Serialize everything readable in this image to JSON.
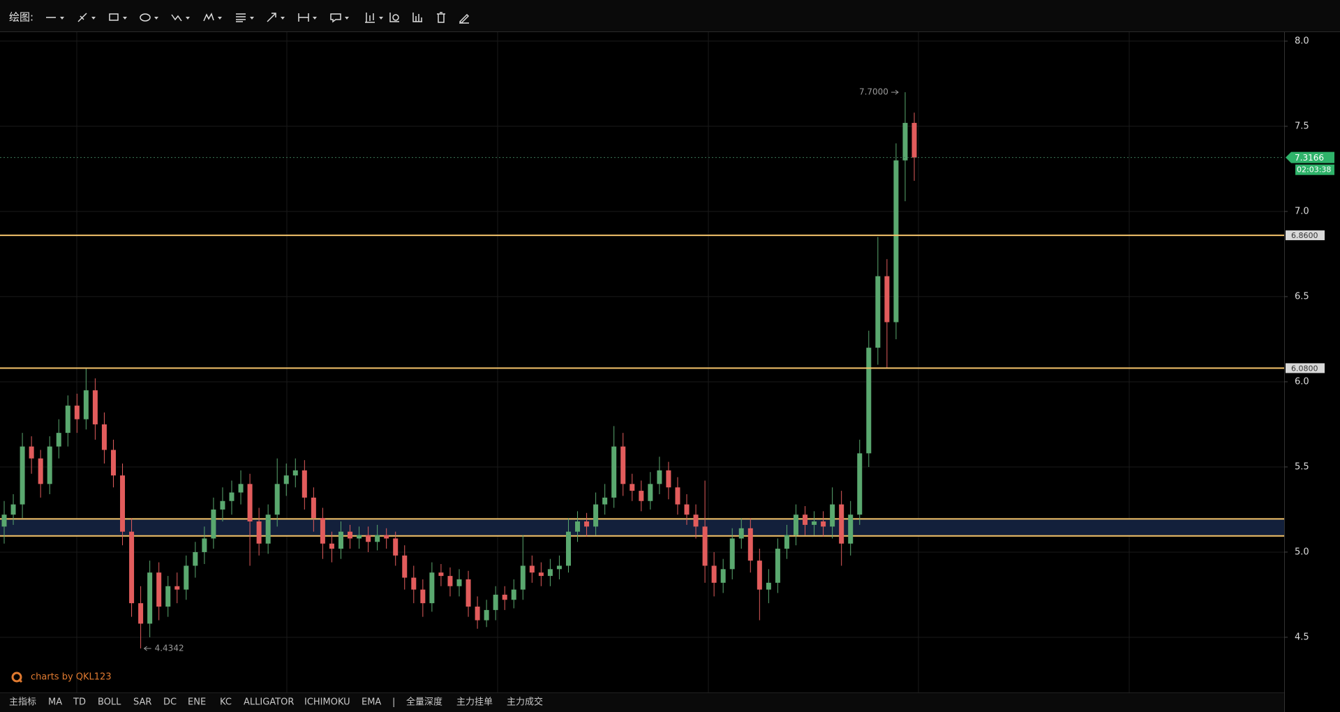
{
  "toolbar": {
    "label": "绘图:"
  },
  "indicator_bar": {
    "items": [
      "主指标",
      "MA",
      "TD",
      "BOLL",
      "SAR",
      "DC",
      "ENE",
      "KC",
      "ALLIGATOR",
      "ICHIMOKU",
      "EMA",
      "|",
      "全量深度",
      "主力挂单",
      "主力成交"
    ]
  },
  "watermark": "charts by QKL123",
  "chart_data": {
    "type": "candlestick",
    "up_color": "#5aa86f",
    "down_color": "#e25c5c",
    "ylim": [
      4.176,
      8.053
    ],
    "yticks": [
      {
        "value": 8,
        "label": "8.0"
      },
      7.5,
      {
        "value": 7,
        "label": "7.0"
      },
      6.5,
      {
        "value": 6,
        "label": "6.0"
      },
      5.5,
      {
        "value": 5,
        "label": "5.0"
      },
      4.5
    ],
    "grid": true,
    "open": [
      5.15,
      5.22,
      5.28,
      5.62,
      5.55,
      5.4,
      5.62,
      5.7,
      5.86,
      5.78,
      5.95,
      5.75,
      5.6,
      5.45,
      5.12,
      4.7,
      4.58,
      4.88,
      4.68,
      4.8,
      4.78,
      4.92,
      5.0,
      5.08,
      5.25,
      5.3,
      5.35,
      5.4,
      5.18,
      5.05,
      5.22,
      5.4,
      5.45,
      5.48,
      5.32,
      5.2,
      5.05,
      5.02,
      5.12,
      5.08,
      5.1,
      5.06,
      5.1,
      5.08,
      4.98,
      4.85,
      4.78,
      4.7,
      4.88,
      4.86,
      4.8,
      4.84,
      4.68,
      4.6,
      4.66,
      4.75,
      4.72,
      4.78,
      4.92,
      4.88,
      4.86,
      4.9,
      4.92,
      5.12,
      5.18,
      5.15,
      5.28,
      5.32,
      5.62,
      5.4,
      5.36,
      5.3,
      5.4,
      5.48,
      5.38,
      5.28,
      5.22,
      5.15,
      4.92,
      4.82,
      4.9,
      5.08,
      5.14,
      4.95,
      4.78,
      4.82,
      5.02,
      5.1,
      5.22,
      5.16,
      5.18,
      5.15,
      5.28,
      5.05,
      5.22,
      5.58,
      6.2,
      6.62,
      6.35,
      7.3,
      7.52
    ],
    "high": [
      5.3,
      5.34,
      5.7,
      5.68,
      5.6,
      5.68,
      5.78,
      5.92,
      5.93,
      6.08,
      6.02,
      5.82,
      5.66,
      5.52,
      5.2,
      4.8,
      4.95,
      4.94,
      4.86,
      4.88,
      4.98,
      5.06,
      5.15,
      5.32,
      5.38,
      5.42,
      5.48,
      5.46,
      5.26,
      5.28,
      5.55,
      5.52,
      5.55,
      5.54,
      5.38,
      5.26,
      5.12,
      5.18,
      5.16,
      5.15,
      5.15,
      5.16,
      5.14,
      5.12,
      5.04,
      4.92,
      4.84,
      4.94,
      4.93,
      4.91,
      4.9,
      4.89,
      4.74,
      4.72,
      4.8,
      4.8,
      4.84,
      5.1,
      4.98,
      4.94,
      4.96,
      4.98,
      5.2,
      5.24,
      5.23,
      5.35,
      5.4,
      5.74,
      5.7,
      5.46,
      5.42,
      5.47,
      5.56,
      5.53,
      5.44,
      5.34,
      5.28,
      5.42,
      5.0,
      4.96,
      5.14,
      5.2,
      5.2,
      5.02,
      4.9,
      5.08,
      5.16,
      5.28,
      5.27,
      5.24,
      5.24,
      5.38,
      5.36,
      5.3,
      5.66,
      6.3,
      6.85,
      6.72,
      7.4,
      7.7,
      7.58
    ],
    "low": [
      5.05,
      5.16,
      5.2,
      5.46,
      5.32,
      5.34,
      5.55,
      5.62,
      5.7,
      5.72,
      5.66,
      5.52,
      5.38,
      5.04,
      4.62,
      4.4342,
      4.5,
      4.6,
      4.62,
      4.7,
      4.72,
      4.85,
      4.93,
      5.02,
      5.18,
      5.22,
      5.28,
      4.92,
      4.98,
      4.99,
      5.15,
      5.33,
      5.38,
      5.25,
      5.12,
      4.96,
      4.94,
      4.96,
      5.02,
      5.02,
      5.0,
      5.01,
      5.02,
      4.92,
      4.78,
      4.7,
      4.62,
      4.65,
      4.8,
      4.74,
      4.74,
      4.62,
      4.55,
      4.56,
      4.6,
      4.66,
      4.67,
      4.72,
      4.82,
      4.8,
      4.8,
      4.84,
      4.88,
      5.06,
      5.09,
      5.1,
      5.22,
      5.26,
      5.33,
      5.3,
      5.24,
      5.25,
      5.34,
      5.31,
      5.22,
      5.16,
      5.08,
      4.82,
      4.74,
      4.76,
      4.84,
      5.02,
      4.88,
      4.6,
      4.7,
      4.76,
      4.96,
      5.04,
      5.1,
      5.1,
      5.09,
      5.08,
      4.92,
      4.98,
      5.16,
      5.5,
      6.1,
      6.08,
      6.25,
      7.06,
      7.18
    ],
    "close": [
      5.22,
      5.28,
      5.62,
      5.55,
      5.4,
      5.62,
      5.7,
      5.86,
      5.78,
      5.95,
      5.75,
      5.6,
      5.45,
      5.12,
      4.7,
      4.58,
      4.88,
      4.68,
      4.8,
      4.78,
      4.92,
      5.0,
      5.08,
      5.25,
      5.3,
      5.35,
      5.4,
      5.18,
      5.05,
      5.22,
      5.4,
      5.45,
      5.48,
      5.32,
      5.2,
      5.05,
      5.02,
      5.12,
      5.08,
      5.1,
      5.06,
      5.1,
      5.08,
      4.98,
      4.85,
      4.78,
      4.7,
      4.88,
      4.86,
      4.8,
      4.84,
      4.68,
      4.6,
      4.66,
      4.75,
      4.72,
      4.78,
      4.92,
      4.88,
      4.86,
      4.9,
      4.92,
      5.12,
      5.18,
      5.15,
      5.28,
      5.32,
      5.62,
      5.4,
      5.36,
      5.3,
      5.4,
      5.48,
      5.38,
      5.28,
      5.22,
      5.15,
      4.92,
      4.82,
      4.9,
      5.08,
      5.14,
      4.95,
      4.78,
      4.82,
      5.02,
      5.1,
      5.22,
      5.16,
      5.18,
      5.15,
      5.28,
      5.05,
      5.22,
      5.58,
      6.2,
      6.62,
      6.35,
      7.3,
      7.52,
      7.3166
    ],
    "levels": [
      {
        "value": 6.86,
        "label": "6.8600"
      },
      {
        "value": 6.08,
        "label": "6.0800"
      }
    ],
    "level_color": "#f5c46b",
    "zone": [
      5.095,
      5.195
    ],
    "zone_color": "#13203b",
    "last_price": 7.3166,
    "countdown": "02:03:38",
    "high_marker": {
      "value": 7.7,
      "label": "7.7000"
    },
    "low_marker": 4.4342
  }
}
